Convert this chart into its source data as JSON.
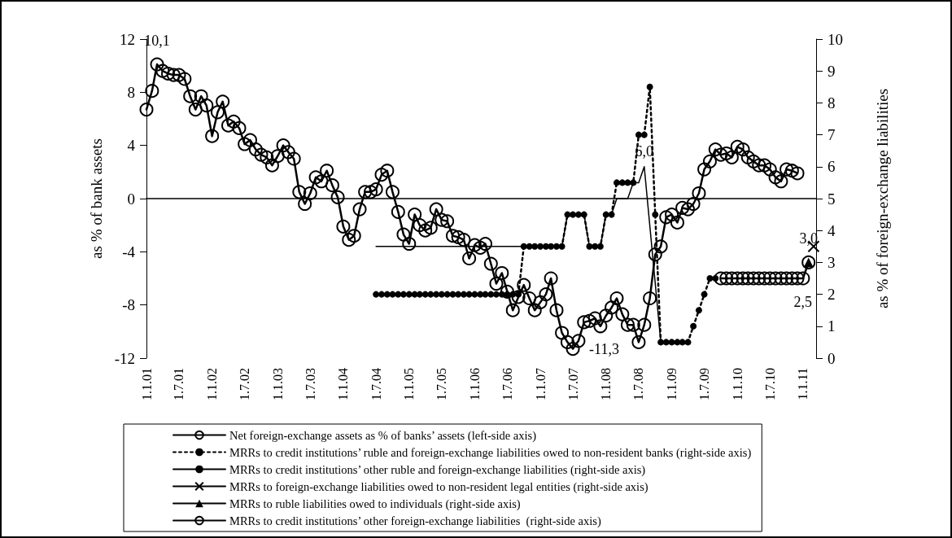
{
  "chart_data": {
    "type": "line",
    "ylabel": "as % of bank assets",
    "y2label": "as % of foreign-exchange liabilities",
    "ylim": [
      -12,
      12
    ],
    "yticks": [
      -12,
      -8,
      -4,
      0,
      4,
      8,
      12
    ],
    "y2lim": [
      0,
      10
    ],
    "y2ticks": [
      0,
      1,
      2,
      3,
      4,
      5,
      6,
      7,
      8,
      9,
      10
    ],
    "xlim": [
      "2001-01",
      "2011-03-15"
    ],
    "xticks": [
      {
        "value": "2001-01",
        "label": "1.1.01"
      },
      {
        "value": "2001-07",
        "label": "1.7.01"
      },
      {
        "value": "2002-01",
        "label": "1.1.02"
      },
      {
        "value": "2002-07",
        "label": "1.7.02"
      },
      {
        "value": "2003-01",
        "label": "1.1.03"
      },
      {
        "value": "2003-07",
        "label": "1.7.03"
      },
      {
        "value": "2004-01",
        "label": "1.1.04"
      },
      {
        "value": "2004-07",
        "label": "1.7.04"
      },
      {
        "value": "2005-01",
        "label": "1.1.05"
      },
      {
        "value": "2005-07",
        "label": "1.7.05"
      },
      {
        "value": "2006-01",
        "label": "1.1.06"
      },
      {
        "value": "2006-07",
        "label": "1.7.06"
      },
      {
        "value": "2007-01",
        "label": "1.1.07"
      },
      {
        "value": "2007-07",
        "label": "1.7.07"
      },
      {
        "value": "2008-01",
        "label": "1.1.08"
      },
      {
        "value": "2008-07",
        "label": "1.7.08"
      },
      {
        "value": "2009-01",
        "label": "1.1.09"
      },
      {
        "value": "2009-07",
        "label": "1.7.09"
      },
      {
        "value": "2010-01",
        "label": "1.1.10"
      },
      {
        "value": "2010-07",
        "label": "1.7.10"
      },
      {
        "value": "2011-01",
        "label": "1.1.11"
      }
    ],
    "x": [
      "2001-01",
      "2001-02",
      "2001-03",
      "2001-04",
      "2001-05",
      "2001-06",
      "2001-07",
      "2001-08",
      "2001-09",
      "2001-10",
      "2001-11",
      "2001-12",
      "2002-01",
      "2002-02",
      "2002-03",
      "2002-04",
      "2002-05",
      "2002-06",
      "2002-07",
      "2002-08",
      "2002-09",
      "2002-10",
      "2002-11",
      "2002-12",
      "2003-01",
      "2003-02",
      "2003-03",
      "2003-04",
      "2003-05",
      "2003-06",
      "2003-07",
      "2003-08",
      "2003-09",
      "2003-10",
      "2003-11",
      "2003-12",
      "2004-01",
      "2004-02",
      "2004-03",
      "2004-04",
      "2004-05",
      "2004-06",
      "2004-07",
      "2004-08",
      "2004-09",
      "2004-10",
      "2004-11",
      "2004-12",
      "2005-01",
      "2005-02",
      "2005-03",
      "2005-04",
      "2005-05",
      "2005-06",
      "2005-07",
      "2005-08",
      "2005-09",
      "2005-10",
      "2005-11",
      "2005-12",
      "2006-01",
      "2006-02",
      "2006-03",
      "2006-04",
      "2006-05",
      "2006-06",
      "2006-07",
      "2006-08",
      "2006-09",
      "2006-10",
      "2006-11",
      "2006-12",
      "2007-01",
      "2007-02",
      "2007-03",
      "2007-04",
      "2007-05",
      "2007-06",
      "2007-07",
      "2007-08",
      "2007-09",
      "2007-10",
      "2007-11",
      "2007-12",
      "2008-01",
      "2008-02",
      "2008-03",
      "2008-04",
      "2008-05",
      "2008-06",
      "2008-07",
      "2008-08",
      "2008-09",
      "2008-10",
      "2008-11",
      "2008-12",
      "2009-01",
      "2009-02",
      "2009-03",
      "2009-04",
      "2009-05",
      "2009-06",
      "2009-07",
      "2009-08",
      "2009-09",
      "2009-10",
      "2009-11",
      "2009-12",
      "2010-01",
      "2010-02",
      "2010-03",
      "2010-04",
      "2010-05",
      "2010-06",
      "2010-07",
      "2010-08",
      "2010-09",
      "2010-10",
      "2010-11",
      "2010-12"
    ],
    "legend": "bottom",
    "series": [
      {
        "name": "Net foreign-exchange assets as % of banks’ assets (left-side axis)",
        "color": "#000000",
        "marker": "circle",
        "line_style": "solid",
        "values": [
          6.7,
          8.1,
          10.1,
          9.6,
          9.4,
          9.3,
          9.3,
          9.0,
          7.7,
          6.7,
          7.7,
          7.0,
          4.7,
          6.5,
          7.3,
          5.5,
          5.8,
          5.3,
          4.1,
          4.4,
          3.7,
          3.3,
          3.1,
          2.5,
          3.2,
          4.0,
          3.5,
          3.0,
          0.5,
          -0.4,
          0.4,
          1.6,
          1.3,
          2.1,
          1.0,
          0.1,
          -2.1,
          -3.1,
          -2.8,
          -0.8,
          0.5,
          0.5,
          0.7,
          1.8,
          2.1,
          0.5,
          -1.0,
          -2.7,
          -3.4,
          -1.2,
          -2.0,
          -2.4,
          -2.2,
          -0.8,
          -1.6,
          -1.7,
          -2.8,
          -2.9,
          -3.1,
          -4.5,
          -3.5,
          -3.7,
          -3.4,
          -4.9,
          -6.4,
          -5.6,
          -7.0,
          -8.4,
          -7.4,
          -6.5,
          -7.5,
          -8.4,
          -7.8,
          -7.2,
          -6.0,
          -8.4,
          -10.1,
          -10.8,
          -11.3,
          -10.7,
          -9.3,
          -9.2,
          -9.0,
          -9.6,
          -8.8,
          -8.2,
          -7.5,
          -8.7,
          -9.5,
          -9.5,
          -10.8,
          -9.5,
          -7.5,
          -4.2,
          -3.6,
          -1.4,
          -1.2,
          -1.8,
          -0.7,
          -0.8,
          -0.4,
          0.4,
          2.2,
          2.8,
          3.7,
          3.3,
          3.4,
          3.1,
          3.9,
          3.7,
          3.1,
          2.8,
          2.5,
          2.5,
          2.2,
          1.6,
          1.3,
          2.2,
          2.1,
          1.9
        ],
        "value_labels": [
          null,
          null,
          "10,1",
          null,
          null,
          null,
          null,
          null,
          null,
          null,
          null,
          null,
          null,
          null,
          null,
          null,
          null,
          null,
          null,
          null,
          null,
          null,
          null,
          null,
          null,
          null,
          null,
          null,
          null,
          null,
          null,
          null,
          null,
          null,
          null,
          null,
          null,
          null,
          null,
          null,
          null,
          null,
          null,
          null,
          null,
          null,
          null,
          null,
          null,
          null,
          null,
          null,
          null,
          null,
          null,
          null,
          null,
          null,
          null,
          null,
          null,
          null,
          null,
          null,
          null,
          null,
          null,
          null,
          null,
          null,
          null,
          null,
          null,
          null,
          null,
          null,
          null,
          null,
          "-11,3",
          null,
          null,
          null,
          null,
          null,
          null,
          null,
          null,
          null,
          null,
          null,
          null,
          null,
          null,
          null,
          null,
          null,
          null,
          null,
          null,
          null,
          null,
          null,
          null,
          null,
          null,
          null,
          null,
          null,
          null,
          null,
          null,
          null,
          null,
          null,
          null,
          null,
          null,
          null,
          null,
          null
        ]
      },
      {
        "name": "MRRs to credit institutions’ ruble and foreign-exchange liabilities owed to non-resident banks (right-side axis)",
        "color": "#000000",
        "marker": "circle",
        "line_style": "dotted",
        "axis": "y2",
        "values": [
          null,
          null,
          null,
          null,
          null,
          null,
          null,
          null,
          null,
          null,
          null,
          null,
          null,
          null,
          null,
          null,
          null,
          null,
          null,
          null,
          null,
          null,
          null,
          null,
          null,
          null,
          null,
          null,
          null,
          null,
          null,
          null,
          null,
          null,
          null,
          null,
          null,
          null,
          null,
          null,
          null,
          null,
          2.0,
          2.0,
          2.0,
          2.0,
          2.0,
          2.0,
          2.0,
          2.0,
          2.0,
          2.0,
          2.0,
          2.0,
          2.0,
          2.0,
          2.0,
          2.0,
          2.0,
          2.0,
          2.0,
          2.0,
          2.0,
          2.0,
          2.0,
          2.0,
          2.0,
          2.0,
          2.0,
          3.5,
          3.5,
          3.5,
          3.5,
          3.5,
          3.5,
          3.5,
          3.5,
          4.5,
          4.5,
          4.5,
          4.5,
          3.5,
          3.5,
          3.5,
          4.5,
          4.5,
          5.5,
          5.5,
          5.5,
          5.5,
          7.0,
          7.0,
          8.5,
          4.5,
          0.5,
          0.5,
          0.5,
          0.5,
          0.5,
          0.5,
          1.0,
          1.5,
          2.0,
          2.5,
          2.5,
          null,
          null,
          null,
          null,
          null,
          null,
          null,
          null,
          null,
          null,
          null,
          null,
          null,
          null,
          null
        ]
      },
      {
        "name": "MRRs to credit institutions’ other ruble and foreign-exchange liabilities (right-side axis)",
        "color": "#000000",
        "marker": "none",
        "line_style": "solid",
        "axis": "y2",
        "x": [
          "2004-07",
          "2007-05",
          "2007-06",
          "2007-09",
          "2007-10",
          "2007-12",
          "2008-01",
          "2008-02",
          "2008-03",
          "2008-05",
          "2008-06",
          "2008-07",
          "2008-08",
          "2008-11"
        ],
        "values": [
          3.5,
          3.5,
          4.5,
          4.5,
          3.5,
          3.5,
          4.5,
          4.5,
          5.0,
          5.0,
          5.5,
          5.5,
          6.0,
          0.5
        ],
        "value_labels": [
          null,
          null,
          null,
          null,
          null,
          null,
          null,
          null,
          null,
          null,
          null,
          null,
          "6,0",
          null
        ]
      },
      {
        "name": "MRRs to foreign-exchange liabilities owed to non-resident legal entities (right-side axis)",
        "color": "#000000",
        "marker": "cross",
        "line_style": "solid",
        "axis": "y2",
        "x": [
          "2011-03"
        ],
        "values": [
          3.5
        ]
      },
      {
        "name": "MRRs to ruble liabilities owed to individuals (right-side axis)",
        "color": "#000000",
        "marker": "triangle",
        "line_style": "solid",
        "axis": "y2",
        "x": [
          "2011-02"
        ],
        "values": [
          3.0
        ]
      },
      {
        "name": "MRRs to credit institutions’ other foreign-exchange liabilities  (right-side axis)",
        "color": "#000000",
        "marker": "circle",
        "line_style": "solid",
        "axis": "y2",
        "x": [
          "2009-10",
          "2009-11",
          "2009-12",
          "2010-01",
          "2010-02",
          "2010-03",
          "2010-04",
          "2010-05",
          "2010-06",
          "2010-07",
          "2010-08",
          "2010-09",
          "2010-10",
          "2010-11",
          "2010-12",
          "2011-01",
          "2011-02"
        ],
        "values": [
          2.5,
          2.5,
          2.5,
          2.5,
          2.5,
          2.5,
          2.5,
          2.5,
          2.5,
          2.5,
          2.5,
          2.5,
          2.5,
          2.5,
          2.5,
          2.5,
          3.0
        ],
        "value_labels": [
          null,
          null,
          null,
          null,
          null,
          null,
          null,
          null,
          null,
          null,
          null,
          null,
          null,
          null,
          null,
          "2,5",
          "3,0"
        ]
      }
    ]
  }
}
